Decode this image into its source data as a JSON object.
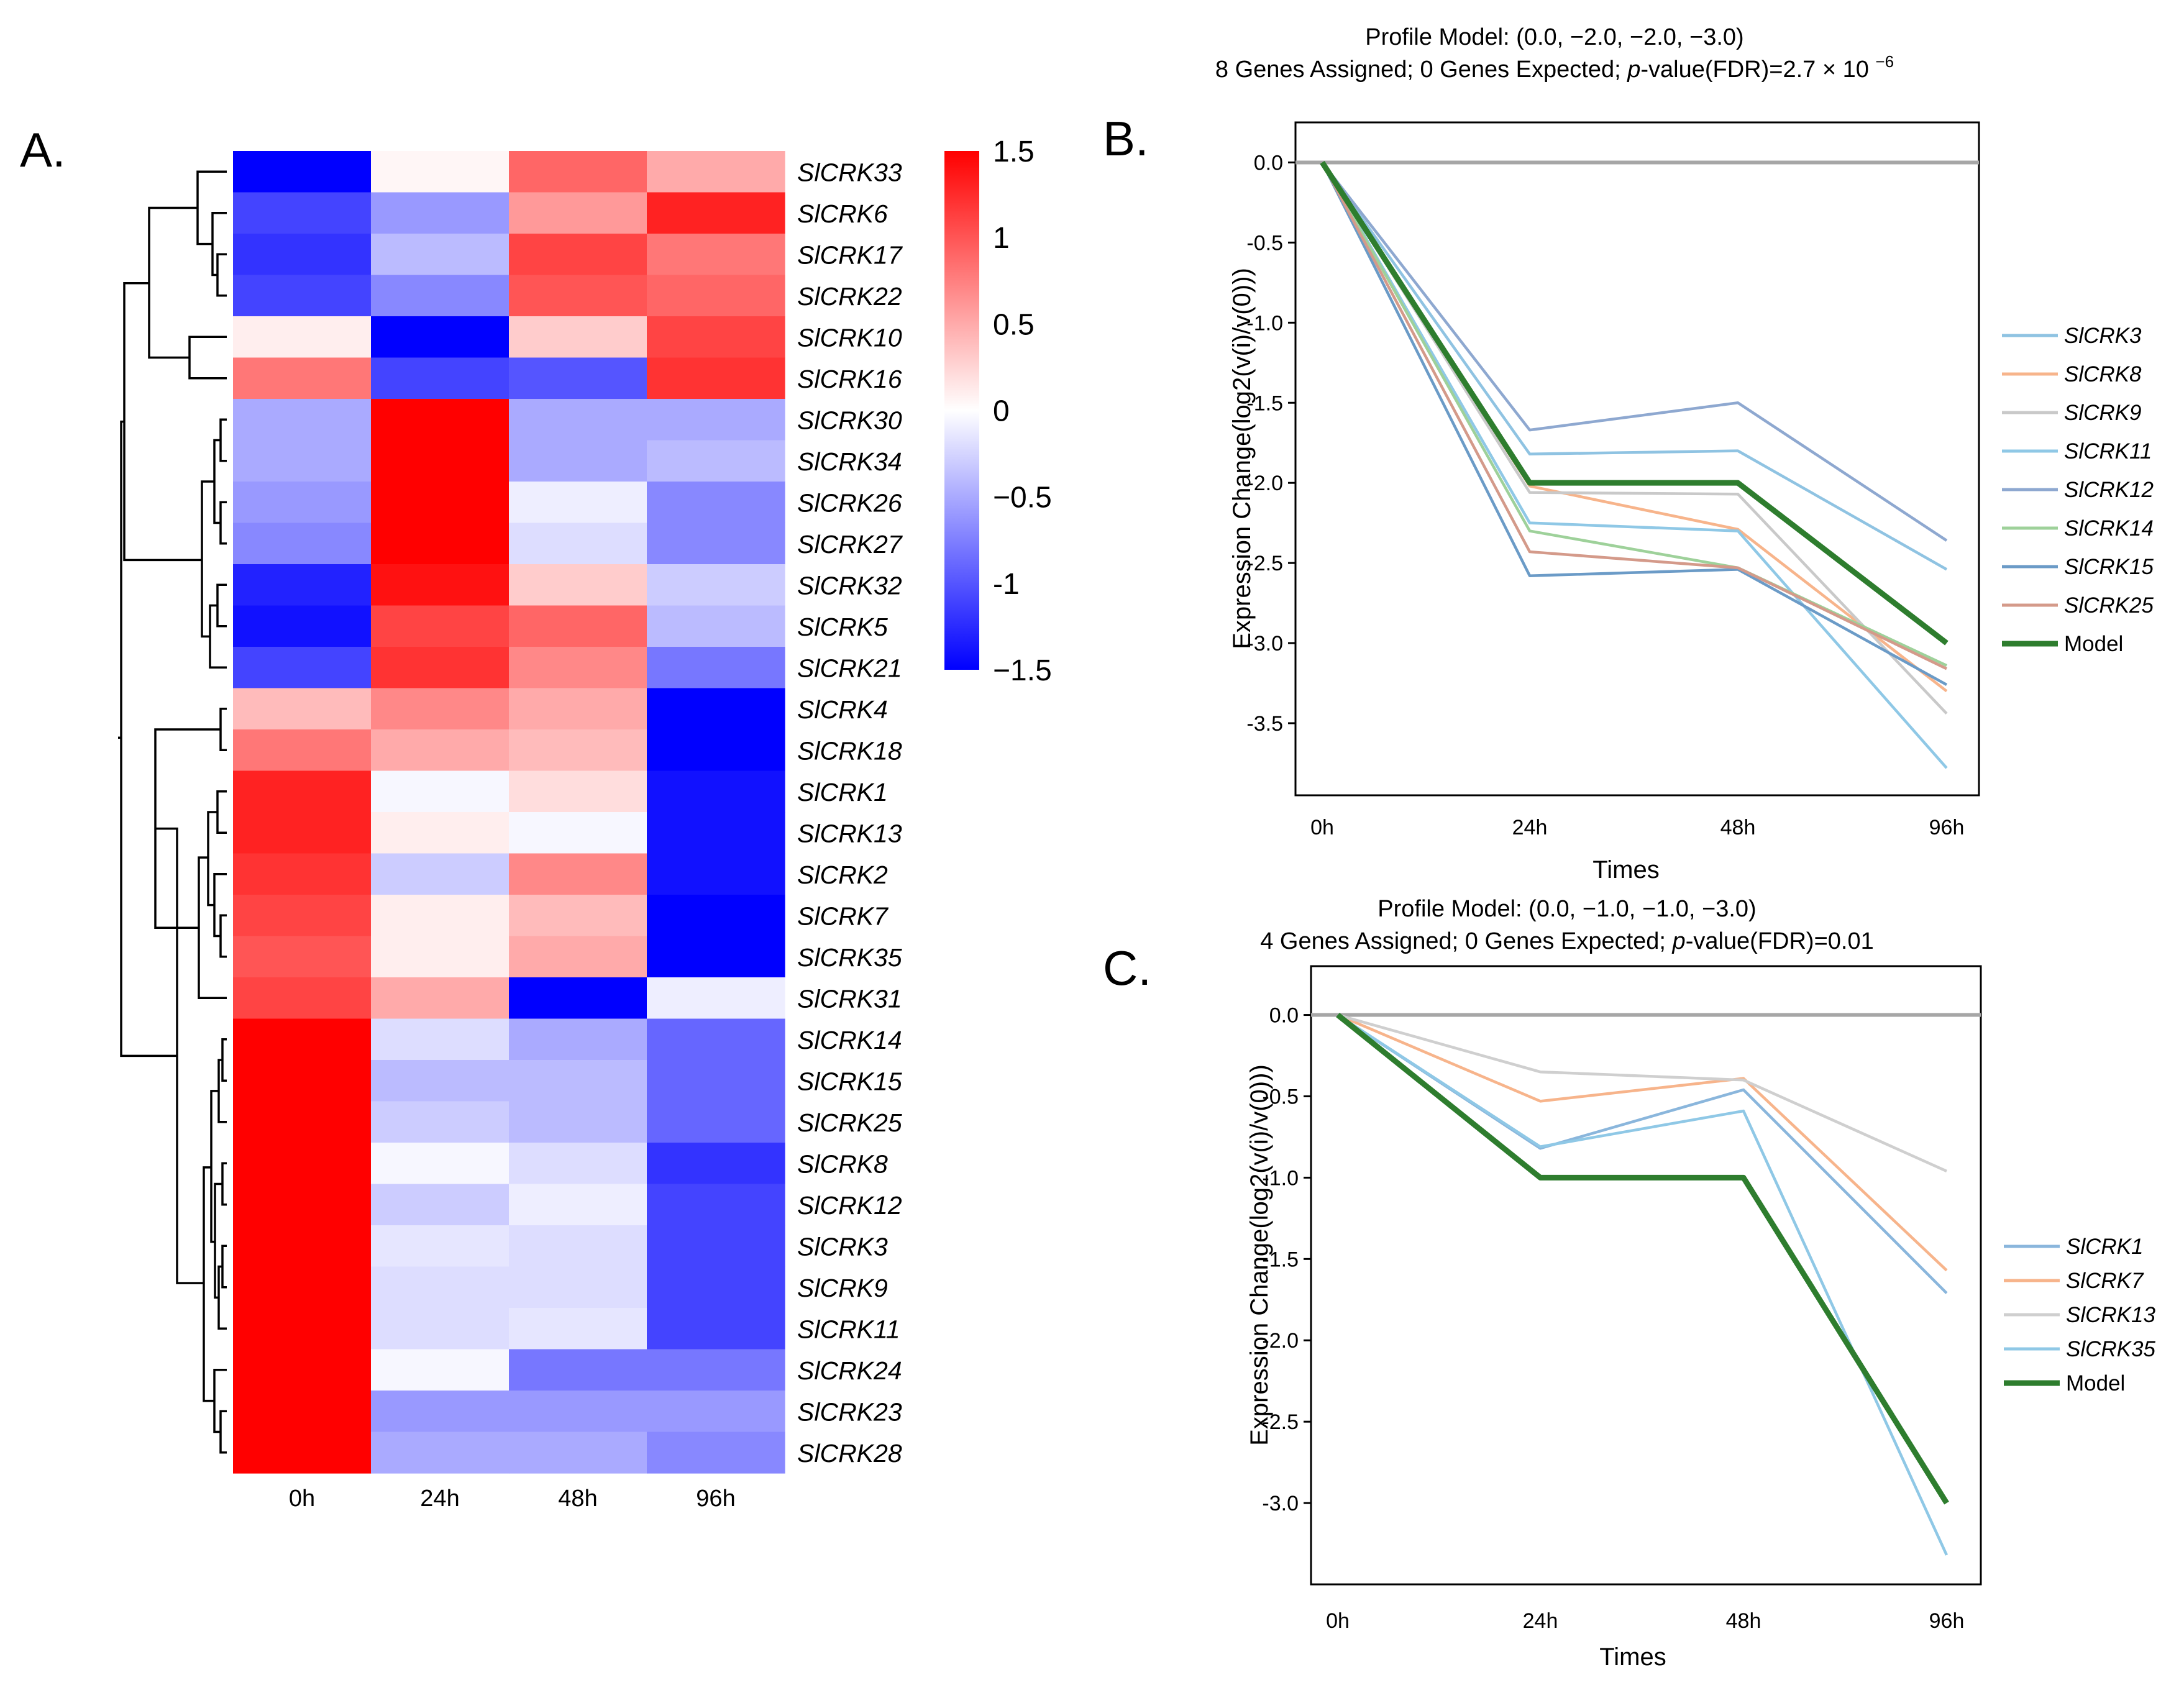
{
  "panels": {
    "a": {
      "letter": "A."
    },
    "b": {
      "letter": "B."
    },
    "c": {
      "letter": "C."
    }
  },
  "chart_data": [
    {
      "id": "A",
      "type": "heatmap",
      "columns": [
        "0h",
        "24h",
        "48h",
        "96h"
      ],
      "rows": [
        "SlCRK33",
        "SlCRK6",
        "SlCRK17",
        "SlCRK22",
        "SlCRK10",
        "SlCRK16",
        "SlCRK30",
        "SlCRK34",
        "SlCRK26",
        "SlCRK27",
        "SlCRK32",
        "SlCRK5",
        "SlCRK21",
        "SlCRK4",
        "SlCRK18",
        "SlCRK1",
        "SlCRK13",
        "SlCRK2",
        "SlCRK7",
        "SlCRK35",
        "SlCRK31",
        "SlCRK14",
        "SlCRK15",
        "SlCRK25",
        "SlCRK8",
        "SlCRK12",
        "SlCRK3",
        "SlCRK9",
        "SlCRK11",
        "SlCRK24",
        "SlCRK23",
        "SlCRK28"
      ],
      "values": [
        [
          -1.5,
          0.05,
          0.9,
          0.5
        ],
        [
          -1.1,
          -0.6,
          0.6,
          1.3
        ],
        [
          -1.2,
          -0.4,
          1.1,
          0.8
        ],
        [
          -1.1,
          -0.7,
          1.0,
          0.9
        ],
        [
          0.1,
          -1.5,
          0.3,
          1.1
        ],
        [
          0.8,
          -1.1,
          -1.0,
          1.2
        ],
        [
          -0.5,
          1.5,
          -0.5,
          -0.5
        ],
        [
          -0.5,
          1.5,
          -0.5,
          -0.4
        ],
        [
          -0.6,
          1.5,
          -0.1,
          -0.7
        ],
        [
          -0.7,
          1.5,
          -0.2,
          -0.7
        ],
        [
          -1.3,
          1.4,
          0.3,
          -0.3
        ],
        [
          -1.4,
          1.1,
          0.9,
          -0.4
        ],
        [
          -1.1,
          1.2,
          0.7,
          -0.8
        ],
        [
          0.4,
          0.7,
          0.5,
          -1.5
        ],
        [
          0.8,
          0.5,
          0.4,
          -1.5
        ],
        [
          1.3,
          -0.05,
          0.2,
          -1.4
        ],
        [
          1.3,
          0.1,
          -0.05,
          -1.4
        ],
        [
          1.2,
          -0.3,
          0.7,
          -1.4
        ],
        [
          1.1,
          0.1,
          0.4,
          -1.5
        ],
        [
          1.0,
          0.1,
          0.5,
          -1.5
        ],
        [
          1.1,
          0.5,
          -1.5,
          -0.1
        ],
        [
          1.5,
          -0.2,
          -0.5,
          -0.9
        ],
        [
          1.5,
          -0.4,
          -0.4,
          -0.9
        ],
        [
          1.5,
          -0.3,
          -0.4,
          -0.9
        ],
        [
          1.5,
          -0.05,
          -0.2,
          -1.2
        ],
        [
          1.5,
          -0.3,
          -0.1,
          -1.1
        ],
        [
          1.5,
          -0.15,
          -0.2,
          -1.1
        ],
        [
          1.5,
          -0.2,
          -0.2,
          -1.1
        ],
        [
          1.5,
          -0.2,
          -0.15,
          -1.1
        ],
        [
          1.5,
          -0.05,
          -0.8,
          -0.8
        ],
        [
          1.5,
          -0.6,
          -0.6,
          -0.6
        ],
        [
          1.5,
          -0.5,
          -0.5,
          -0.7
        ]
      ],
      "colorbar": {
        "min": -1.5,
        "max": 1.5,
        "ticks": [
          1.5,
          1,
          0.5,
          0,
          -0.5,
          -1,
          -1.5
        ],
        "tick_labels": [
          "1.5",
          "1",
          "0.5",
          "0",
          "−0.5",
          "-1",
          "−1.5"
        ],
        "colors": {
          "low": "#0000ff",
          "mid": "#ffffff",
          "high": "#ff0000"
        }
      }
    },
    {
      "id": "B",
      "type": "line",
      "title_line1": "Profile Model: (0.0, −2.0, −2.0, −3.0)",
      "title_line2_pre": "8 Genes Assigned; 0 Genes Expected; ",
      "title_p": "p",
      "title_line2_post": "-value(FDR)=2.7 × 10 ",
      "title_exp": "−6",
      "xlabel": "Times",
      "ylabel": "Expression Change(log2(v(i)/v(0)))",
      "categories": [
        "0h",
        "24h",
        "48h",
        "96h"
      ],
      "ylim": [
        -3.95,
        0.25
      ],
      "yticks": [
        0.0,
        -0.5,
        -1.0,
        -1.5,
        -2.0,
        -2.5,
        -3.0,
        -3.5
      ],
      "ytick_labels": [
        "0.0",
        "-0.5",
        "-1.0",
        "-1.5",
        "-2.0",
        "-2.5",
        "-3.0",
        "-3.5"
      ],
      "baseline": 0.0,
      "series": [
        {
          "name": "SlCRK3",
          "values": [
            0,
            -1.82,
            -1.8,
            -2.54
          ],
          "color": "#8fc3e2"
        },
        {
          "name": "SlCRK8",
          "values": [
            0,
            -2.02,
            -2.29,
            -3.3
          ],
          "color": "#f7b48b"
        },
        {
          "name": "SlCRK9",
          "values": [
            0,
            -2.06,
            -2.07,
            -3.44
          ],
          "color": "#c9c9c9"
        },
        {
          "name": "SlCRK11",
          "values": [
            0,
            -2.25,
            -2.3,
            -3.78
          ],
          "color": "#8fc8e6"
        },
        {
          "name": "SlCRK12",
          "values": [
            0,
            -1.67,
            -1.5,
            -2.36
          ],
          "color": "#8ea8d0"
        },
        {
          "name": "SlCRK14",
          "values": [
            0,
            -2.3,
            -2.53,
            -3.14
          ],
          "color": "#9ed19a"
        },
        {
          "name": "SlCRK15",
          "values": [
            0,
            -2.58,
            -2.54,
            -3.26
          ],
          "color": "#6b9bc7"
        },
        {
          "name": "SlCRK25",
          "values": [
            0,
            -2.43,
            -2.53,
            -3.16
          ],
          "color": "#d49a8a"
        },
        {
          "name": "Model",
          "values": [
            0,
            -2.0,
            -2.0,
            -3.0
          ],
          "color": "#2e7d2e",
          "bold": true
        }
      ]
    },
    {
      "id": "C",
      "type": "line",
      "title_line1": "Profile Model: (0.0, −1.0, −1.0, −3.0)",
      "title_line2_pre": "4 Genes Assigned; 0 Genes Expected; ",
      "title_p": "p",
      "title_line2_post": "-value(FDR)=0.01",
      "title_exp": "",
      "xlabel": "Times",
      "ylabel": "Expression Change(log2(v(i)/v(0)))",
      "categories": [
        "0h",
        "24h",
        "48h",
        "96h"
      ],
      "ylim": [
        -3.5,
        0.3
      ],
      "yticks": [
        0.0,
        -0.5,
        -1.0,
        -1.5,
        -2.0,
        -2.5,
        -3.0
      ],
      "ytick_labels": [
        "0.0",
        "-0.5",
        "-1.0",
        "-1.5",
        "-2.0",
        "-2.5",
        "-3.0"
      ],
      "baseline": 0.0,
      "series": [
        {
          "name": "SlCRK1",
          "values": [
            0,
            -0.82,
            -0.46,
            -1.71
          ],
          "color": "#8ab6dc"
        },
        {
          "name": "SlCRK7",
          "values": [
            0,
            -0.53,
            -0.39,
            -1.57
          ],
          "color": "#f7b48b"
        },
        {
          "name": "SlCRK13",
          "values": [
            0,
            -0.35,
            -0.4,
            -0.96
          ],
          "color": "#cfcfcf"
        },
        {
          "name": "SlCRK35",
          "values": [
            0,
            -0.81,
            -0.59,
            -3.32
          ],
          "color": "#8fc8e6"
        },
        {
          "name": "Model",
          "values": [
            0,
            -1.0,
            -1.0,
            -3.0
          ],
          "color": "#2e7d2e",
          "bold": true
        }
      ]
    }
  ]
}
